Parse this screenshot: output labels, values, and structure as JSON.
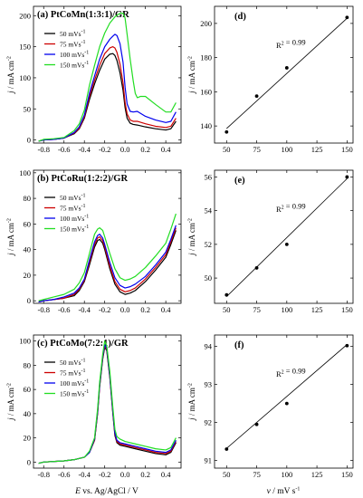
{
  "x_axis_left": "E vs. Ag/AgCl / V",
  "x_axis_right": "v / mV s-1",
  "y_axis_label": "j / mA cm-2",
  "legend_labels": [
    "50 mVs-1",
    "75 mVs-1",
    "100 mVs-1",
    "150 mVs-1"
  ],
  "colors": {
    "50": "#000000",
    "75": "#cc0000",
    "100": "#0000ee",
    "150": "#22dd22"
  },
  "chart_data": [
    {
      "type": "line",
      "panel_title": "(a) PtCoMn(1:3:1)/GR",
      "xlim": [
        -0.9,
        0.55
      ],
      "ylim": [
        -5,
        215
      ],
      "xticks": [
        -0.8,
        -0.6,
        -0.4,
        -0.2,
        0.0,
        0.2,
        0.4
      ],
      "yticks": [
        0,
        50,
        100,
        150,
        200
      ],
      "series": [
        {
          "name": "50 mVs-1",
          "color": "#000000",
          "x": [
            -0.85,
            -0.8,
            -0.7,
            -0.6,
            -0.5,
            -0.45,
            -0.4,
            -0.35,
            -0.3,
            -0.25,
            -0.2,
            -0.15,
            -0.12,
            -0.1,
            -0.08,
            -0.05,
            -0.02,
            0.0,
            0.02,
            0.05,
            0.08,
            0.12,
            0.2,
            0.3,
            0.4,
            0.45,
            0.5
          ],
          "y": [
            -2,
            0,
            1,
            3,
            10,
            18,
            35,
            65,
            90,
            112,
            130,
            138,
            139,
            136,
            128,
            108,
            80,
            52,
            35,
            27,
            25,
            24,
            21,
            18,
            16,
            18,
            30
          ]
        },
        {
          "name": "75 mVs-1",
          "color": "#cc0000",
          "x": [
            -0.85,
            -0.8,
            -0.7,
            -0.6,
            -0.5,
            -0.45,
            -0.4,
            -0.35,
            -0.3,
            -0.25,
            -0.2,
            -0.15,
            -0.12,
            -0.1,
            -0.08,
            -0.05,
            -0.02,
            0.0,
            0.02,
            0.05,
            0.08,
            0.12,
            0.2,
            0.3,
            0.4,
            0.45,
            0.5
          ],
          "y": [
            -2,
            0,
            1,
            3,
            11,
            19,
            37,
            70,
            96,
            120,
            139,
            148,
            150,
            148,
            141,
            122,
            92,
            60,
            42,
            32,
            30,
            30,
            26,
            22,
            20,
            22,
            35
          ]
        },
        {
          "name": "100 mVs-1",
          "color": "#0000ee",
          "x": [
            -0.85,
            -0.8,
            -0.7,
            -0.6,
            -0.5,
            -0.45,
            -0.4,
            -0.35,
            -0.3,
            -0.25,
            -0.2,
            -0.15,
            -0.12,
            -0.1,
            -0.08,
            -0.05,
            -0.02,
            0.0,
            0.02,
            0.05,
            0.08,
            0.12,
            0.2,
            0.3,
            0.4,
            0.45,
            0.5
          ],
          "y": [
            -2,
            0,
            1,
            3,
            12,
            21,
            40,
            75,
            103,
            130,
            150,
            162,
            167,
            170,
            168,
            155,
            125,
            85,
            58,
            46,
            45,
            46,
            38,
            32,
            28,
            30,
            45
          ]
        },
        {
          "name": "150 mVs-1",
          "color": "#22dd22",
          "x": [
            -0.85,
            -0.8,
            -0.7,
            -0.6,
            -0.5,
            -0.45,
            -0.4,
            -0.35,
            -0.3,
            -0.25,
            -0.2,
            -0.15,
            -0.1,
            -0.05,
            -0.02,
            0.0,
            0.02,
            0.05,
            0.08,
            0.1,
            0.12,
            0.15,
            0.2,
            0.3,
            0.4,
            0.45,
            0.5
          ],
          "y": [
            -2,
            1,
            2,
            4,
            15,
            26,
            48,
            88,
            120,
            150,
            172,
            188,
            198,
            204,
            204,
            196,
            170,
            130,
            95,
            75,
            68,
            70,
            70,
            57,
            45,
            45,
            60
          ]
        }
      ]
    },
    {
      "type": "scatter",
      "panel_title": "(d)",
      "annotation": "R2 = 0.99",
      "xlim": [
        40,
        155
      ],
      "ylim": [
        130,
        210
      ],
      "xticks": [
        50,
        75,
        100,
        125,
        150
      ],
      "yticks": [
        140,
        160,
        180,
        200
      ],
      "x": [
        50,
        75,
        100,
        150
      ],
      "y": [
        136.5,
        157.5,
        174,
        203.5
      ],
      "fit": {
        "x": [
          50,
          150
        ],
        "y": [
          138.5,
          203
        ]
      }
    },
    {
      "type": "line",
      "panel_title": "(b) PtCoRu(1:2:2)/GR",
      "xlim": [
        -0.9,
        0.55
      ],
      "ylim": [
        -2,
        102
      ],
      "xticks": [
        -0.8,
        -0.6,
        -0.4,
        -0.2,
        0.0,
        0.2,
        0.4
      ],
      "yticks": [
        0,
        20,
        40,
        60,
        80,
        100
      ],
      "series": [
        {
          "name": "50 mVs-1",
          "color": "#000000",
          "x": [
            -0.85,
            -0.8,
            -0.7,
            -0.6,
            -0.5,
            -0.45,
            -0.4,
            -0.35,
            -0.3,
            -0.27,
            -0.25,
            -0.22,
            -0.2,
            -0.15,
            -0.1,
            -0.05,
            0.0,
            0.05,
            0.1,
            0.2,
            0.3,
            0.4,
            0.45,
            0.5
          ],
          "y": [
            -1,
            0,
            1,
            2,
            4,
            8,
            15,
            28,
            42,
            47,
            48,
            45,
            40,
            25,
            13,
            7,
            5,
            6,
            8,
            15,
            24,
            34,
            44,
            55
          ]
        },
        {
          "name": "75 mVs-1",
          "color": "#cc0000",
          "x": [
            -0.85,
            -0.8,
            -0.7,
            -0.6,
            -0.5,
            -0.45,
            -0.4,
            -0.35,
            -0.3,
            -0.27,
            -0.25,
            -0.22,
            -0.2,
            -0.15,
            -0.1,
            -0.05,
            0.0,
            0.05,
            0.1,
            0.2,
            0.3,
            0.4,
            0.45,
            0.5
          ],
          "y": [
            -1,
            0,
            1,
            2,
            5,
            9,
            16,
            30,
            44,
            49,
            50,
            47,
            42,
            27,
            15,
            9,
            7,
            8,
            10,
            17,
            26,
            36,
            46,
            57
          ]
        },
        {
          "name": "100 mVs-1",
          "color": "#0000ee",
          "x": [
            -0.85,
            -0.8,
            -0.7,
            -0.6,
            -0.5,
            -0.45,
            -0.4,
            -0.35,
            -0.3,
            -0.27,
            -0.25,
            -0.22,
            -0.2,
            -0.15,
            -0.1,
            -0.05,
            0.0,
            0.05,
            0.1,
            0.2,
            0.3,
            0.4,
            0.45,
            0.5
          ],
          "y": [
            -1,
            0,
            1,
            3,
            6,
            10,
            17,
            32,
            46,
            51,
            52,
            49,
            44,
            30,
            18,
            12,
            10,
            11,
            13,
            19,
            28,
            38,
            48,
            59
          ]
        },
        {
          "name": "150 mVs-1",
          "color": "#22dd22",
          "x": [
            -0.85,
            -0.8,
            -0.7,
            -0.6,
            -0.5,
            -0.45,
            -0.4,
            -0.35,
            -0.3,
            -0.27,
            -0.25,
            -0.22,
            -0.2,
            -0.15,
            -0.1,
            -0.05,
            0.0,
            0.05,
            0.1,
            0.2,
            0.3,
            0.4,
            0.45,
            0.5
          ],
          "y": [
            0,
            1,
            3,
            5,
            9,
            14,
            22,
            37,
            52,
            56,
            57,
            55,
            50,
            37,
            25,
            18,
            16,
            17,
            19,
            26,
            35,
            45,
            56,
            68
          ]
        }
      ]
    },
    {
      "type": "scatter",
      "panel_title": "(e)",
      "annotation": "R2 = 0.99",
      "xlim": [
        40,
        155
      ],
      "ylim": [
        48.5,
        56.4
      ],
      "xticks": [
        50,
        75,
        100,
        125,
        150
      ],
      "yticks": [
        50,
        52,
        54,
        56
      ],
      "x": [
        50,
        75,
        100,
        150
      ],
      "y": [
        49,
        50.6,
        52,
        56
      ],
      "fit": {
        "x": [
          50,
          150
        ],
        "y": [
          48.9,
          55.9
        ]
      }
    },
    {
      "type": "line",
      "panel_title": "(c) PtCoMo(7:2:1)/GR",
      "xlim": [
        -0.9,
        0.55
      ],
      "ylim": [
        -5,
        105
      ],
      "xticks": [
        -0.8,
        -0.6,
        -0.4,
        -0.2,
        0.0,
        0.2,
        0.4
      ],
      "yticks": [
        0,
        20,
        40,
        60,
        80,
        100
      ],
      "series": [
        {
          "name": "50 mVs-1",
          "color": "#000000",
          "x": [
            -0.85,
            -0.8,
            -0.6,
            -0.5,
            -0.4,
            -0.35,
            -0.3,
            -0.27,
            -0.25,
            -0.22,
            -0.2,
            -0.18,
            -0.15,
            -0.12,
            -0.1,
            -0.08,
            -0.05,
            0.0,
            0.1,
            0.2,
            0.3,
            0.4,
            0.45,
            0.5
          ],
          "y": [
            -1,
            0,
            1,
            2,
            4,
            8,
            18,
            40,
            62,
            85,
            95,
            92,
            70,
            40,
            22,
            16,
            14,
            13,
            11,
            9,
            7,
            6,
            8,
            16
          ]
        },
        {
          "name": "75 mVs-1",
          "color": "#cc0000",
          "x": [
            -0.85,
            -0.8,
            -0.6,
            -0.5,
            -0.4,
            -0.35,
            -0.3,
            -0.27,
            -0.25,
            -0.22,
            -0.2,
            -0.18,
            -0.15,
            -0.12,
            -0.1,
            -0.08,
            -0.05,
            0.0,
            0.1,
            0.2,
            0.3,
            0.4,
            0.45,
            0.5
          ],
          "y": [
            -1,
            0,
            1,
            2,
            4,
            8,
            18,
            41,
            63,
            86,
            96,
            93,
            71,
            41,
            23,
            17,
            15,
            14,
            12,
            10,
            8,
            7,
            9,
            17
          ]
        },
        {
          "name": "100 mVs-1",
          "color": "#0000ee",
          "x": [
            -0.85,
            -0.8,
            -0.6,
            -0.5,
            -0.4,
            -0.35,
            -0.3,
            -0.27,
            -0.25,
            -0.22,
            -0.2,
            -0.18,
            -0.15,
            -0.12,
            -0.1,
            -0.08,
            -0.05,
            0.0,
            0.1,
            0.2,
            0.3,
            0.4,
            0.45,
            0.5
          ],
          "y": [
            -1,
            0,
            1,
            2,
            4,
            8,
            19,
            42,
            64,
            87,
            97,
            94,
            72,
            42,
            24,
            18,
            16,
            15,
            13,
            11,
            9,
            8,
            10,
            18
          ]
        },
        {
          "name": "150 mVs-1",
          "color": "#22dd22",
          "x": [
            -0.85,
            -0.8,
            -0.6,
            -0.5,
            -0.4,
            -0.35,
            -0.3,
            -0.27,
            -0.25,
            -0.22,
            -0.2,
            -0.18,
            -0.15,
            -0.12,
            -0.1,
            -0.08,
            -0.05,
            0.0,
            0.1,
            0.2,
            0.3,
            0.4,
            0.45,
            0.5
          ],
          "y": [
            -1,
            0,
            1,
            2,
            4,
            9,
            20,
            44,
            66,
            89,
            100,
            96,
            75,
            45,
            27,
            21,
            19,
            17,
            15,
            13,
            11,
            10,
            12,
            20
          ]
        }
      ]
    },
    {
      "type": "scatter",
      "panel_title": "(f)",
      "annotation": "R2 = 0.99",
      "xlim": [
        40,
        155
      ],
      "ylim": [
        90.8,
        94.3
      ],
      "xticks": [
        50,
        75,
        100,
        125,
        150
      ],
      "yticks": [
        91,
        92,
        93,
        94
      ],
      "x": [
        50,
        75,
        100,
        150
      ],
      "y": [
        91.3,
        91.95,
        92.5,
        94.02
      ],
      "fit": {
        "x": [
          50,
          150
        ],
        "y": [
          91.32,
          94.05
        ]
      }
    }
  ]
}
